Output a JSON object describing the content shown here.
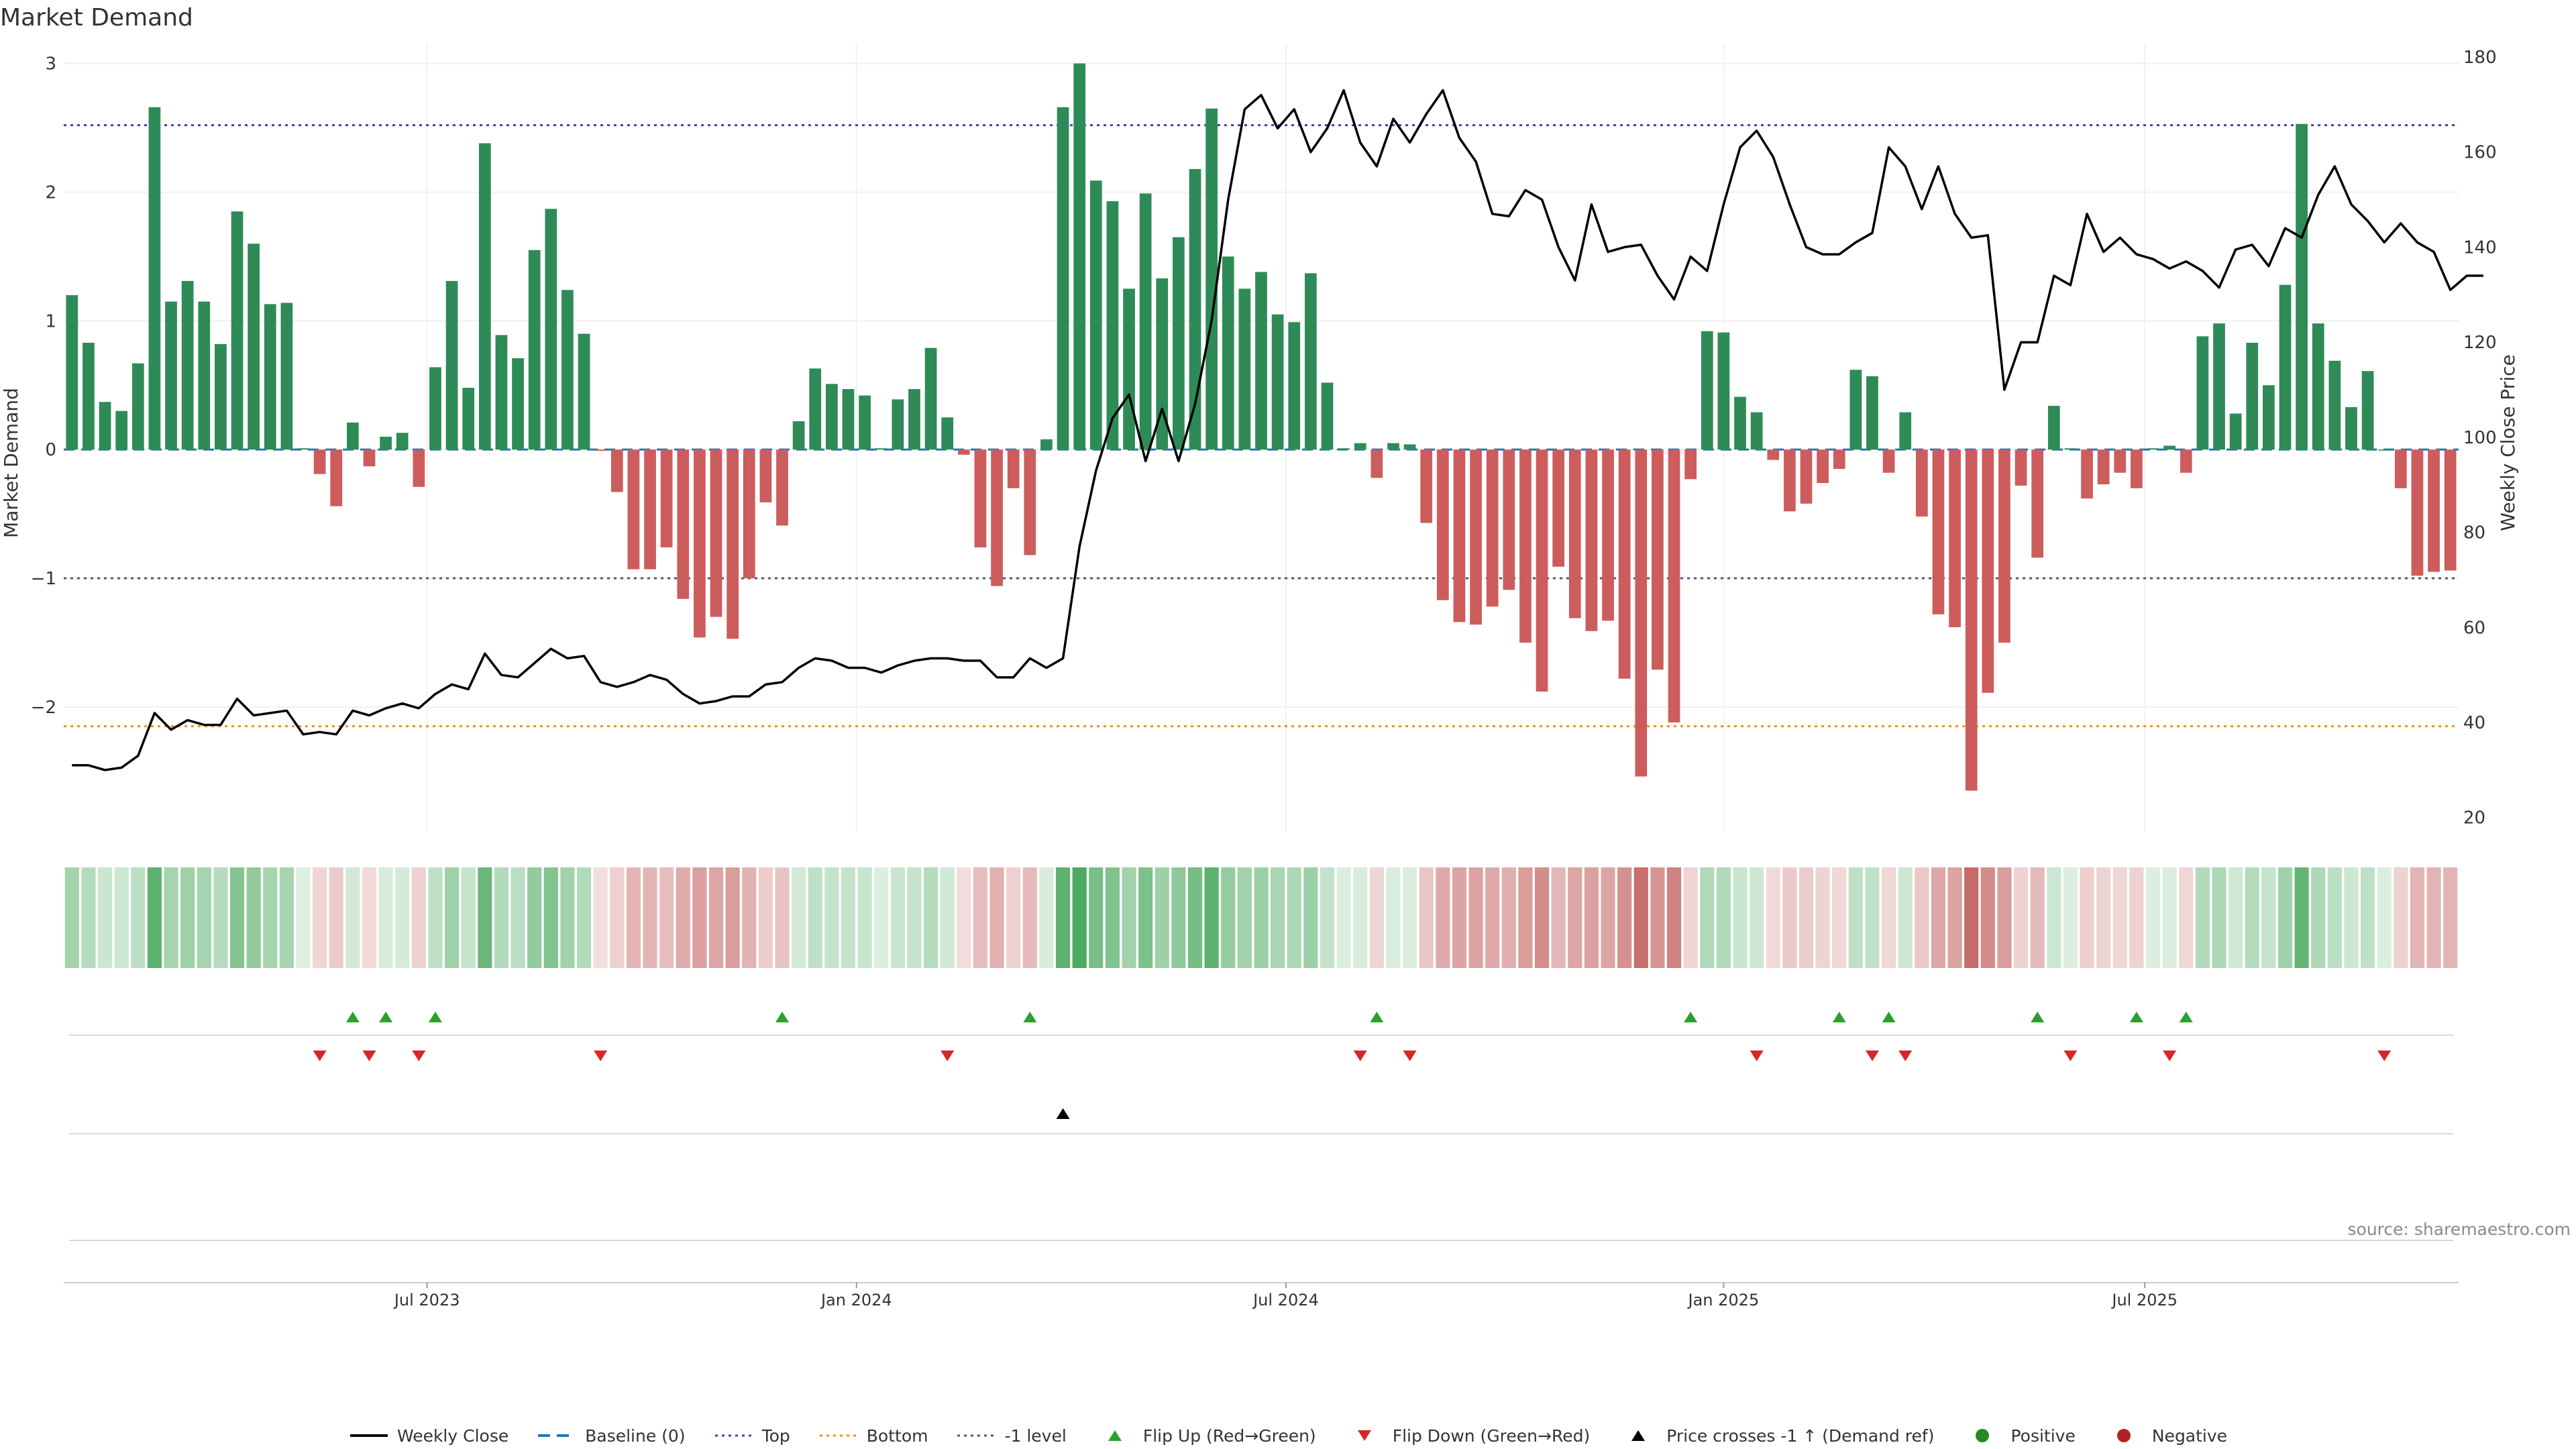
{
  "title": "Market Demand",
  "source": "source: sharemaestro.com",
  "colors": {
    "positive": "#2e8b57",
    "negative": "#cd5c5c",
    "price_line": "#000000",
    "top_line": "#3f3fb0",
    "bottom_line": "#ff8c00",
    "minus1_line": "#555577",
    "baseline": "#1f77b4",
    "flip_up": "#2ca02c",
    "flip_down": "#d62728",
    "cross_marker": "#000000"
  },
  "chart_data": {
    "type": "bar",
    "title": "Market Demand",
    "ylabel": "Market Demand",
    "y2label": "Weekly Close Price",
    "ylim": [
      -2.97,
      3.05
    ],
    "y2lim": [
      17,
      180
    ],
    "yticks": [
      3,
      2,
      1,
      0,
      -1,
      -2
    ],
    "ytick_labels": [
      "3",
      "2",
      "1",
      "0",
      "−1",
      "−2"
    ],
    "y2ticks": [
      180,
      160,
      140,
      120,
      100,
      80,
      60,
      40,
      20
    ],
    "x_tick_labels": [
      {
        "label": "Jul 2023",
        "week": 22
      },
      {
        "label": "Jan 2024",
        "week": 48
      },
      {
        "label": "Jul 2024",
        "week": 74
      },
      {
        "label": "Jan 2025",
        "week": 100.5
      },
      {
        "label": "Jul 2025",
        "week": 126
      }
    ],
    "levels": {
      "top": 2.52,
      "bottom": -2.15,
      "minus_one": -1.0,
      "baseline": 0
    },
    "demand": [
      1.2,
      0.83,
      0.37,
      0.3,
      0.67,
      2.66,
      1.15,
      1.31,
      1.15,
      0.82,
      1.85,
      1.6,
      1.13,
      1.14,
      0.01,
      -0.19,
      -0.44,
      0.21,
      -0.13,
      0.1,
      0.13,
      -0.29,
      0.64,
      1.31,
      0.48,
      2.38,
      0.89,
      0.71,
      1.55,
      1.87,
      1.24,
      0.9,
      -0.01,
      -0.33,
      -0.93,
      -0.93,
      -0.76,
      -1.16,
      -1.46,
      -1.3,
      -1.47,
      -1.0,
      -0.41,
      -0.59,
      0.22,
      0.63,
      0.51,
      0.47,
      0.42,
      0.01,
      0.39,
      0.47,
      0.79,
      0.25,
      -0.04,
      -0.76,
      -1.06,
      -0.3,
      -0.82,
      0.08,
      2.66,
      3.0,
      2.09,
      1.93,
      1.25,
      1.99,
      1.33,
      1.65,
      2.18,
      2.65,
      1.5,
      1.25,
      1.38,
      1.05,
      0.99,
      1.37,
      0.52,
      0.01,
      0.05,
      -0.22,
      0.05,
      0.04,
      -0.57,
      -1.17,
      -1.34,
      -1.36,
      -1.22,
      -1.09,
      -1.5,
      -1.88,
      -0.91,
      -1.31,
      -1.41,
      -1.33,
      -1.78,
      -2.54,
      -1.71,
      -2.12,
      -0.23,
      0.92,
      0.91,
      0.41,
      0.29,
      -0.08,
      -0.48,
      -0.42,
      -0.26,
      -0.15,
      0.62,
      0.57,
      -0.18,
      0.29,
      -0.52,
      -1.28,
      -1.38,
      -2.65,
      -1.89,
      -1.5,
      -0.28,
      -0.84,
      0.34,
      0.01,
      -0.38,
      -0.27,
      -0.18,
      -0.3,
      0.01,
      0.03,
      -0.18,
      0.88,
      0.98,
      0.28,
      0.83,
      0.5,
      1.28,
      2.53,
      0.98,
      0.69,
      0.33,
      0.61,
      0.0,
      -0.3,
      -0.98,
      -0.95,
      -0.94
    ],
    "weekly_close": [
      31,
      31,
      30,
      30.5,
      33,
      42,
      38.5,
      40.5,
      39.5,
      39.5,
      45,
      41.5,
      42,
      42.5,
      37.5,
      38,
      37.5,
      42.5,
      41.5,
      43,
      44,
      43,
      46,
      48,
      47,
      54.5,
      50,
      49.5,
      52.5,
      55.5,
      53.5,
      54,
      48.5,
      47.5,
      48.5,
      50,
      49,
      46,
      44,
      44.5,
      45.5,
      45.5,
      48,
      48.5,
      51.5,
      53.5,
      53,
      51.5,
      51.5,
      50.5,
      52,
      53,
      53.5,
      53.5,
      53,
      53,
      49.5,
      49.5,
      53.5,
      51.5,
      53.5,
      77,
      93,
      104,
      109,
      95,
      106,
      95,
      107,
      124.5,
      150,
      169,
      172,
      165,
      169,
      160,
      165,
      173,
      162,
      157,
      167,
      162,
      168,
      173,
      163,
      158,
      147,
      146.5,
      152,
      150,
      140,
      133,
      149,
      139,
      140,
      140.5,
      134,
      129,
      138,
      135,
      149,
      161,
      164.5,
      159,
      149,
      140,
      138.5,
      138.5,
      141,
      143,
      161,
      157,
      148,
      157,
      147,
      142,
      142.5,
      110,
      120,
      120,
      134,
      132,
      147,
      139,
      142,
      138.5,
      137.5,
      135.5,
      137,
      135,
      131.5,
      139.5,
      140.5,
      136,
      144,
      142,
      151,
      157,
      149,
      145.5,
      141,
      145,
      141,
      139,
      131,
      134,
      134
    ],
    "flip_up_weeks": [
      17,
      19,
      22,
      43,
      58,
      79,
      98,
      107,
      110,
      119,
      125,
      128
    ],
    "flip_down_weeks": [
      15,
      18,
      21,
      32,
      53,
      78,
      81,
      102,
      109,
      111,
      121,
      127,
      140
    ],
    "price_cross_weeks": [
      60
    ]
  },
  "legend": [
    {
      "key": "weekly-close",
      "label": "Weekly Close"
    },
    {
      "key": "baseline",
      "label": "Baseline (0)"
    },
    {
      "key": "top",
      "label": "Top"
    },
    {
      "key": "bottom",
      "label": "Bottom"
    },
    {
      "key": "minus-one",
      "label": "-1 level"
    },
    {
      "key": "flip-up",
      "label": "Flip Up (Red→Green)"
    },
    {
      "key": "flip-down",
      "label": "Flip Down (Green→Red)"
    },
    {
      "key": "price-cross",
      "label": "Price crosses -1 ↑ (Demand ref)"
    },
    {
      "key": "positive",
      "label": "Positive"
    },
    {
      "key": "negative",
      "label": "Negative"
    }
  ]
}
